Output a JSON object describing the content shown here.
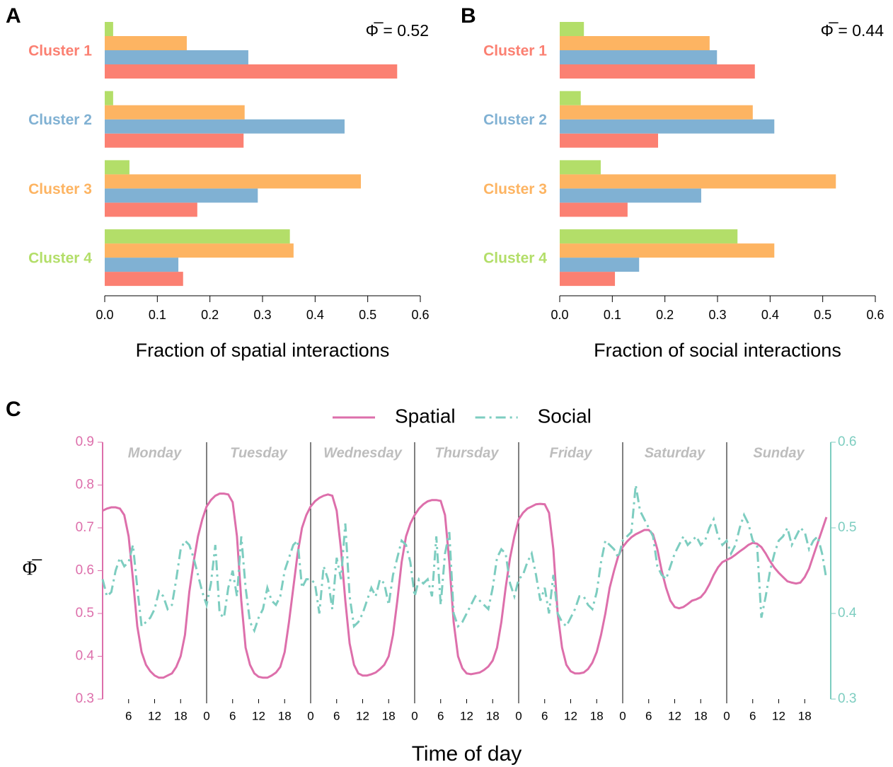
{
  "chart_data": [
    {
      "type": "bar",
      "orientation": "horizontal",
      "panel_label": "A",
      "annotation": "Φ̅ = 0.52",
      "xlabel": "Fraction of spatial interactions",
      "categories": [
        "Cluster 1",
        "Cluster 2",
        "Cluster 3",
        "Cluster 4"
      ],
      "series": [
        {
          "color": "#fb8072",
          "values": [
            0.556,
            0.264,
            0.176,
            0.149
          ]
        },
        {
          "color": "#80b1d3",
          "values": [
            0.273,
            0.456,
            0.291,
            0.14
          ]
        },
        {
          "color": "#fdb462",
          "values": [
            0.156,
            0.266,
            0.487,
            0.359
          ]
        },
        {
          "color": "#b3de69",
          "values": [
            0.016,
            0.016,
            0.047,
            0.352
          ]
        }
      ],
      "xlim": [
        0,
        0.6
      ],
      "xticks": [
        {
          "value": 0,
          "label": "0.0"
        },
        0.1,
        0.2,
        0.3,
        0.4,
        0.5,
        0.6
      ]
    },
    {
      "type": "bar",
      "orientation": "horizontal",
      "panel_label": "B",
      "annotation": "Φ̅ = 0.44",
      "xlabel": "Fraction of social interactions",
      "categories": [
        "Cluster 1",
        "Cluster 2",
        "Cluster 3",
        "Cluster 4"
      ],
      "series": [
        {
          "color": "#fb8072",
          "values": [
            0.371,
            0.187,
            0.129,
            0.105
          ]
        },
        {
          "color": "#80b1d3",
          "values": [
            0.299,
            0.408,
            0.269,
            0.151
          ]
        },
        {
          "color": "#fdb462",
          "values": [
            0.285,
            0.367,
            0.525,
            0.408
          ]
        },
        {
          "color": "#b3de69",
          "values": [
            0.046,
            0.04,
            0.078,
            0.338
          ]
        }
      ],
      "xlim": [
        0,
        0.6
      ],
      "xticks": [
        {
          "value": 0,
          "label": "0.0"
        },
        0.1,
        0.2,
        0.3,
        0.4,
        0.5,
        0.6
      ]
    },
    {
      "type": "line",
      "panel_label": "C",
      "xlabel": "Time of day",
      "ylabel": "Φ̅",
      "legend": "top",
      "day_labels": [
        "Monday",
        "Tuesday",
        "Wednesday",
        "Thursday",
        "Friday",
        "Saturday",
        "Sunday"
      ],
      "x": [
        0,
        1,
        2,
        3,
        4,
        5,
        6,
        7,
        8,
        9,
        10,
        11,
        12,
        13,
        14,
        15,
        16,
        17,
        18,
        19,
        20,
        21,
        22,
        23,
        24,
        25,
        26,
        27,
        28,
        29,
        30,
        31,
        32,
        33,
        34,
        35,
        36,
        37,
        38,
        39,
        40,
        41,
        42,
        43,
        44,
        45,
        46,
        47,
        48,
        49,
        50,
        51,
        52,
        53,
        54,
        55,
        56,
        57,
        58,
        59,
        60,
        61,
        62,
        63,
        64,
        65,
        66,
        67,
        68,
        69,
        70,
        71,
        72,
        73,
        74,
        75,
        76,
        77,
        78,
        79,
        80,
        81,
        82,
        83,
        84,
        85,
        86,
        87,
        88,
        89,
        90,
        91,
        92,
        93,
        94,
        95,
        96,
        97,
        98,
        99,
        100,
        101,
        102,
        103,
        104,
        105,
        106,
        107,
        108,
        109,
        110,
        111,
        112,
        113,
        114,
        115,
        116,
        117,
        118,
        119,
        120,
        121,
        122,
        123,
        124,
        125,
        126,
        127,
        128,
        129,
        130,
        131,
        132,
        133,
        134,
        135,
        136,
        137,
        138,
        139,
        140,
        141,
        142,
        143,
        144,
        145,
        146,
        147,
        148,
        149,
        150,
        151,
        152,
        153,
        154,
        155,
        156,
        157,
        158,
        159,
        160,
        161,
        162,
        163,
        164,
        165,
        166,
        167
      ],
      "series": [
        {
          "name": "Spatial",
          "color": "#dd6fab",
          "style": "solid",
          "axis": "y",
          "values": [
            0.74,
            0.745,
            0.748,
            0.748,
            0.745,
            0.73,
            0.68,
            0.58,
            0.47,
            0.41,
            0.38,
            0.365,
            0.355,
            0.35,
            0.35,
            0.355,
            0.36,
            0.375,
            0.4,
            0.45,
            0.55,
            0.62,
            0.68,
            0.72,
            0.75,
            0.765,
            0.775,
            0.78,
            0.78,
            0.778,
            0.76,
            0.68,
            0.53,
            0.42,
            0.38,
            0.36,
            0.352,
            0.35,
            0.35,
            0.355,
            0.362,
            0.375,
            0.41,
            0.48,
            0.56,
            0.64,
            0.7,
            0.73,
            0.75,
            0.762,
            0.77,
            0.775,
            0.778,
            0.775,
            0.74,
            0.65,
            0.53,
            0.43,
            0.38,
            0.36,
            0.355,
            0.355,
            0.358,
            0.362,
            0.37,
            0.38,
            0.4,
            0.45,
            0.53,
            0.62,
            0.68,
            0.71,
            0.73,
            0.745,
            0.755,
            0.762,
            0.765,
            0.765,
            0.763,
            0.73,
            0.62,
            0.48,
            0.4,
            0.372,
            0.36,
            0.358,
            0.36,
            0.362,
            0.368,
            0.376,
            0.39,
            0.42,
            0.48,
            0.56,
            0.63,
            0.68,
            0.72,
            0.735,
            0.745,
            0.75,
            0.755,
            0.756,
            0.755,
            0.735,
            0.65,
            0.5,
            0.42,
            0.38,
            0.365,
            0.36,
            0.36,
            0.362,
            0.37,
            0.385,
            0.41,
            0.45,
            0.5,
            0.56,
            0.6,
            0.635,
            0.655,
            0.668,
            0.678,
            0.685,
            0.69,
            0.695,
            0.695,
            0.685,
            0.65,
            0.6,
            0.56,
            0.53,
            0.515,
            0.512,
            0.515,
            0.522,
            0.53,
            0.533,
            0.538,
            0.55,
            0.568,
            0.59,
            0.608,
            0.62,
            0.625,
            0.63,
            0.637,
            0.645,
            0.652,
            0.66,
            0.665,
            0.663,
            0.655,
            0.64,
            0.622,
            0.607,
            0.595,
            0.585,
            0.575,
            0.572,
            0.57,
            0.572,
            0.585,
            0.605,
            0.635,
            0.665,
            0.695,
            0.725
          ]
        },
        {
          "name": "Social",
          "color": "#7dcdc0",
          "style": "dashdot",
          "axis": "y2",
          "values": [
            0.44,
            0.42,
            0.425,
            0.45,
            0.465,
            0.455,
            0.46,
            0.48,
            0.43,
            0.385,
            0.39,
            0.395,
            0.405,
            0.426,
            0.42,
            0.405,
            0.41,
            0.44,
            0.475,
            0.485,
            0.48,
            0.465,
            0.445,
            0.425,
            0.41,
            0.435,
            0.48,
            0.4,
            0.395,
            0.43,
            0.45,
            0.42,
            0.49,
            0.43,
            0.39,
            0.38,
            0.395,
            0.405,
            0.43,
            0.415,
            0.41,
            0.42,
            0.45,
            0.465,
            0.48,
            0.485,
            0.43,
            0.44,
            0.44,
            0.435,
            0.4,
            0.455,
            0.44,
            0.405,
            0.465,
            0.44,
            0.505,
            0.42,
            0.385,
            0.39,
            0.4,
            0.415,
            0.43,
            0.42,
            0.44,
            0.435,
            0.41,
            0.445,
            0.465,
            0.485,
            0.48,
            0.46,
            0.42,
            0.44,
            0.435,
            0.44,
            0.42,
            0.49,
            0.41,
            0.47,
            0.495,
            0.4,
            0.385,
            0.39,
            0.4,
            0.41,
            0.42,
            0.415,
            0.41,
            0.405,
            0.43,
            0.465,
            0.475,
            0.47,
            0.435,
            0.42,
            0.44,
            0.445,
            0.46,
            0.47,
            0.445,
            0.415,
            0.43,
            0.4,
            0.445,
            0.4,
            0.39,
            0.385,
            0.395,
            0.405,
            0.42,
            0.42,
            0.41,
            0.405,
            0.425,
            0.46,
            0.485,
            0.48,
            0.475,
            0.465,
            0.485,
            0.49,
            0.495,
            0.55,
            0.52,
            0.51,
            0.5,
            0.49,
            0.455,
            0.445,
            0.44,
            0.455,
            0.47,
            0.48,
            0.49,
            0.48,
            0.485,
            0.49,
            0.48,
            0.485,
            0.5,
            0.51,
            0.49,
            0.48,
            0.485,
            0.47,
            0.48,
            0.5,
            0.515,
            0.505,
            0.485,
            0.48,
            0.395,
            0.42,
            0.45,
            0.47,
            0.485,
            0.49,
            0.5,
            0.48,
            0.49,
            0.5,
            0.495,
            0.475,
            0.485,
            0.49,
            0.47,
            0.44
          ]
        }
      ],
      "xlim": [
        0,
        168
      ],
      "xticks": [
        6,
        12,
        18,
        {
          "value": 24,
          "label": "0"
        },
        {
          "value": 30,
          "label": "6"
        },
        {
          "value": 36,
          "label": "12"
        },
        {
          "value": 42,
          "label": "18"
        },
        {
          "value": 48,
          "label": "0"
        },
        {
          "value": 54,
          "label": "6"
        },
        {
          "value": 60,
          "label": "12"
        },
        {
          "value": 66,
          "label": "18"
        },
        {
          "value": 72,
          "label": "0"
        },
        {
          "value": 78,
          "label": "6"
        },
        {
          "value": 84,
          "label": "12"
        },
        {
          "value": 90,
          "label": "18"
        },
        {
          "value": 96,
          "label": "0"
        },
        {
          "value": 102,
          "label": "6"
        },
        {
          "value": 108,
          "label": "12"
        },
        {
          "value": 114,
          "label": "18"
        },
        {
          "value": 120,
          "label": "0"
        },
        {
          "value": 126,
          "label": "6"
        },
        {
          "value": 132,
          "label": "12"
        },
        {
          "value": 138,
          "label": "18"
        },
        {
          "value": 144,
          "label": "0"
        },
        {
          "value": 150,
          "label": "6"
        },
        {
          "value": 156,
          "label": "12"
        },
        {
          "value": 162,
          "label": "18"
        }
      ],
      "ylim": [
        0.3,
        0.9
      ],
      "yticks": [
        0.3,
        0.4,
        0.5,
        0.6,
        0.7,
        0.8,
        0.9
      ],
      "y2lim": [
        0.3,
        0.6
      ],
      "y2ticks": [
        0.3,
        0.4,
        0.5,
        0.6
      ]
    }
  ]
}
